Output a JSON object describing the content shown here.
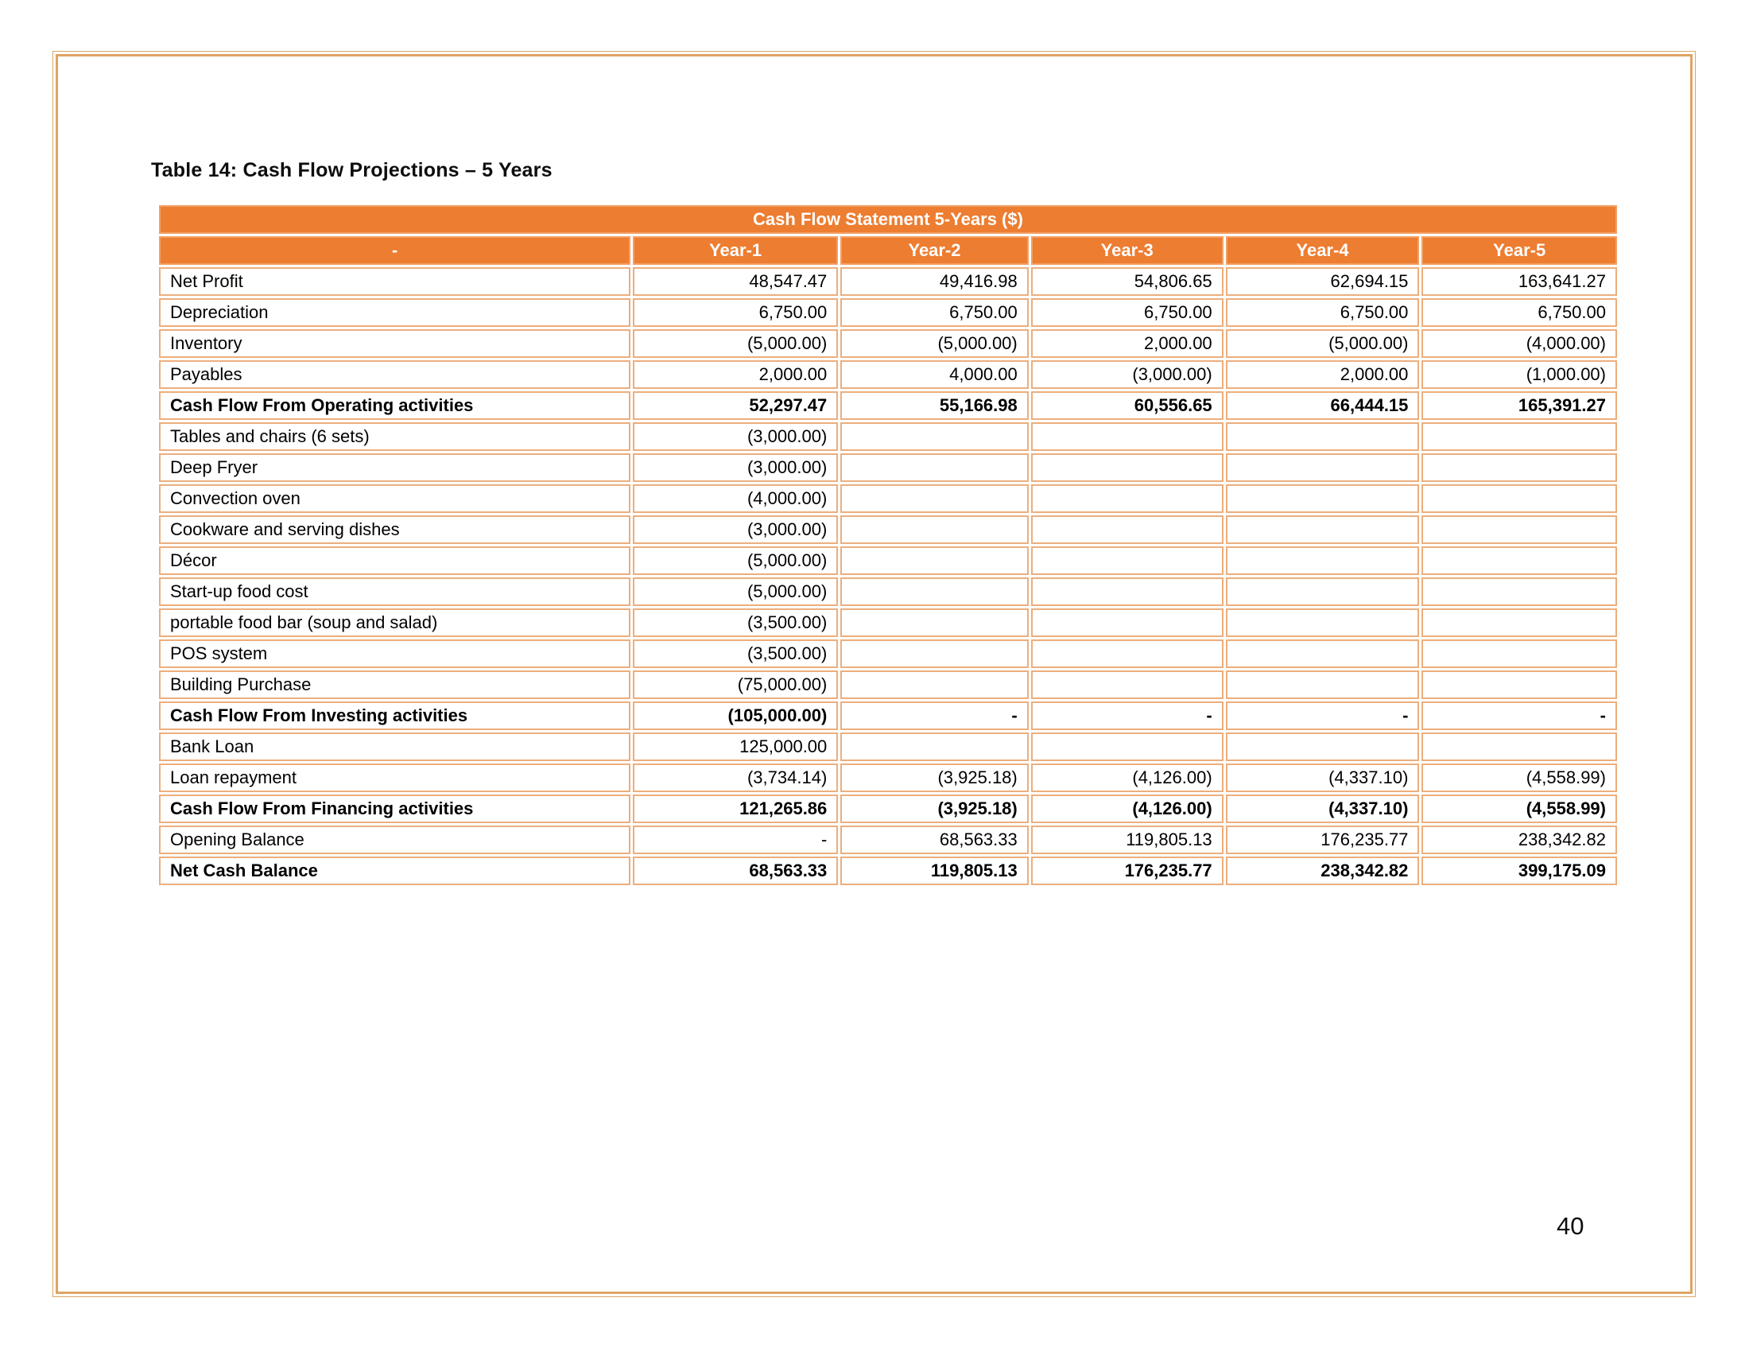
{
  "page": {
    "title": "Table 14: Cash Flow Projections – 5 Years",
    "page_number": "40"
  },
  "colors": {
    "header_bg": "#ed7d31",
    "header_border": "#f2a065",
    "cell_border": "#ecae7d",
    "page_border": "#dda565"
  },
  "chart_data": {
    "type": "table",
    "title": "Cash Flow Statement 5-Years  ($)",
    "columns": [
      "-",
      "Year-1",
      "Year-2",
      "Year-3",
      "Year-4",
      "Year-5"
    ],
    "rows": [
      {
        "label": "Net Profit",
        "bold": false,
        "values": [
          "48,547.47",
          "49,416.98",
          "54,806.65",
          "62,694.15",
          "163,641.27"
        ]
      },
      {
        "label": "Depreciation",
        "bold": false,
        "values": [
          "6,750.00",
          "6,750.00",
          "6,750.00",
          "6,750.00",
          "6,750.00"
        ]
      },
      {
        "label": "Inventory",
        "bold": false,
        "values": [
          "(5,000.00)",
          "(5,000.00)",
          "2,000.00",
          "(5,000.00)",
          "(4,000.00)"
        ]
      },
      {
        "label": "Payables",
        "bold": false,
        "values": [
          "2,000.00",
          "4,000.00",
          "(3,000.00)",
          "2,000.00",
          "(1,000.00)"
        ]
      },
      {
        "label": "Cash Flow From Operating activities",
        "bold": true,
        "values": [
          "52,297.47",
          "55,166.98",
          "60,556.65",
          "66,444.15",
          "165,391.27"
        ]
      },
      {
        "label": "Tables and chairs (6 sets)",
        "bold": false,
        "values": [
          "(3,000.00)",
          "",
          "",
          "",
          ""
        ]
      },
      {
        "label": "Deep Fryer",
        "bold": false,
        "values": [
          "(3,000.00)",
          "",
          "",
          "",
          ""
        ]
      },
      {
        "label": "Convection oven",
        "bold": false,
        "values": [
          "(4,000.00)",
          "",
          "",
          "",
          ""
        ]
      },
      {
        "label": "Cookware and serving dishes",
        "bold": false,
        "values": [
          "(3,000.00)",
          "",
          "",
          "",
          ""
        ]
      },
      {
        "label": "Décor",
        "bold": false,
        "values": [
          "(5,000.00)",
          "",
          "",
          "",
          ""
        ]
      },
      {
        "label": "Start-up food cost",
        "bold": false,
        "values": [
          "(5,000.00)",
          "",
          "",
          "",
          ""
        ]
      },
      {
        "label": "portable food bar (soup and salad)",
        "bold": false,
        "values": [
          "(3,500.00)",
          "",
          "",
          "",
          ""
        ]
      },
      {
        "label": "POS system",
        "bold": false,
        "values": [
          "(3,500.00)",
          "",
          "",
          "",
          ""
        ]
      },
      {
        "label": "Building Purchase",
        "bold": false,
        "values": [
          "(75,000.00)",
          "",
          "",
          "",
          ""
        ]
      },
      {
        "label": "Cash Flow From Investing activities",
        "bold": true,
        "values": [
          "(105,000.00)",
          "-",
          "-",
          "-",
          "-"
        ]
      },
      {
        "label": "Bank Loan",
        "bold": false,
        "values": [
          "125,000.00",
          "",
          "",
          "",
          ""
        ]
      },
      {
        "label": "Loan repayment",
        "bold": false,
        "values": [
          "(3,734.14)",
          "(3,925.18)",
          "(4,126.00)",
          "(4,337.10)",
          "(4,558.99)"
        ]
      },
      {
        "label": "Cash Flow From Financing activities",
        "bold": true,
        "values": [
          "121,265.86",
          "(3,925.18)",
          "(4,126.00)",
          "(4,337.10)",
          "(4,558.99)"
        ]
      },
      {
        "label": "Opening Balance",
        "bold": false,
        "values": [
          "-",
          "68,563.33",
          "119,805.13",
          "176,235.77",
          "238,342.82"
        ]
      },
      {
        "label": "Net Cash Balance",
        "bold": true,
        "values": [
          "68,563.33",
          "119,805.13",
          "176,235.77",
          "238,342.82",
          "399,175.09"
        ]
      }
    ]
  }
}
